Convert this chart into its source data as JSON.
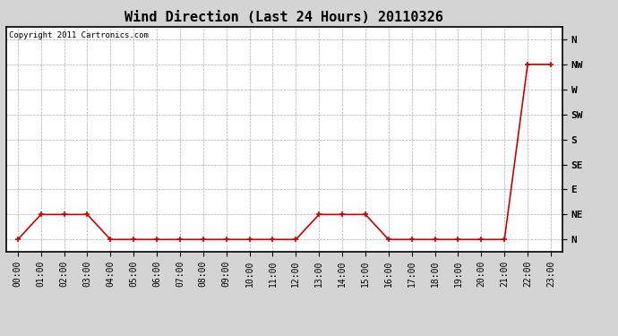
{
  "title": "Wind Direction (Last 24 Hours) 20110326",
  "copyright_text": "Copyright 2011 Cartronics.com",
  "hours": [
    "00:00",
    "01:00",
    "02:00",
    "03:00",
    "04:00",
    "05:00",
    "06:00",
    "07:00",
    "08:00",
    "09:00",
    "10:00",
    "11:00",
    "12:00",
    "13:00",
    "14:00",
    "15:00",
    "16:00",
    "17:00",
    "18:00",
    "19:00",
    "20:00",
    "21:00",
    "22:00",
    "23:00"
  ],
  "wind_values": [
    0,
    1,
    1,
    1,
    0,
    0,
    0,
    0,
    0,
    0,
    0,
    0,
    0,
    1,
    1,
    1,
    0,
    0,
    0,
    0,
    0,
    0,
    7,
    7
  ],
  "yticks_values": [
    0,
    1,
    2,
    3,
    4,
    5,
    6,
    7,
    8
  ],
  "yticks_labels": [
    "N",
    "NE",
    "E",
    "SE",
    "S",
    "SW",
    "W",
    "NW",
    "N"
  ],
  "line_color": "#cc0000",
  "marker": "+",
  "marker_color": "#cc0000",
  "bg_color": "#d4d4d4",
  "plot_bg_color": "#ffffff",
  "grid_color": "#aaaaaa",
  "title_fontsize": 11,
  "copyright_fontsize": 6.5,
  "tick_fontsize": 7,
  "ytick_fontsize": 8,
  "ylim": [
    -0.5,
    8.5
  ]
}
